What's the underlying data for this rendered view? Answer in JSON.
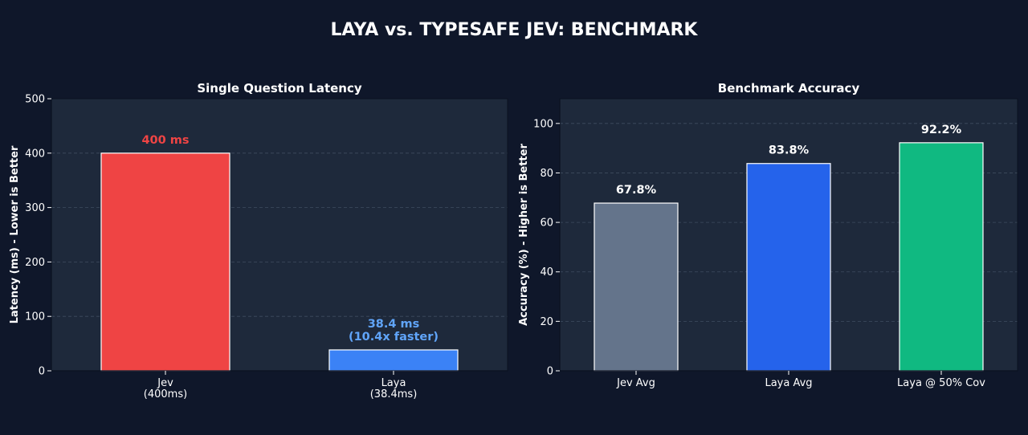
{
  "figure": {
    "title": "LAYA vs. TYPESAFE JEV: BENCHMARK"
  },
  "colors": {
    "figure_bg": "#0f172a",
    "plot_bg": "#1e293b",
    "text": "#ffffff",
    "grid": "#475569",
    "jev_red": "#ef4444",
    "laya_blue": "#3b82f6",
    "jev_gray": "#64748b",
    "laya_royal": "#2563eb",
    "laya_green": "#10b981",
    "label_red": "#ef4444",
    "label_blue": "#60a5fa"
  },
  "chart_data": [
    {
      "type": "bar",
      "title": "Single Question Latency",
      "ylabel": "Latency (ms) - Lower is Better",
      "xlabel": "",
      "categories": [
        "Jev\n(400ms)",
        "Laya\n(38.4ms)"
      ],
      "values": [
        400,
        38.4
      ],
      "bar_colors": [
        "#ef4444",
        "#3b82f6"
      ],
      "data_labels": [
        "400 ms",
        "38.4 ms\n(10.4x faster)"
      ],
      "data_label_colors": [
        "#ef4444",
        "#60a5fa"
      ],
      "ylim": [
        0,
        500
      ],
      "yticks": [
        0,
        100,
        200,
        300,
        400,
        500
      ],
      "grid": true
    },
    {
      "type": "bar",
      "title": "Benchmark Accuracy",
      "ylabel": "Accuracy (%) - Higher is Better",
      "xlabel": "",
      "categories": [
        "Jev Avg",
        "Laya Avg",
        "Laya @ 50% Cov"
      ],
      "values": [
        67.8,
        83.8,
        92.2
      ],
      "bar_colors": [
        "#64748b",
        "#2563eb",
        "#10b981"
      ],
      "data_labels": [
        "67.8%",
        "83.8%",
        "92.2%"
      ],
      "data_label_colors": [
        "#ffffff",
        "#ffffff",
        "#ffffff"
      ],
      "ylim": [
        0,
        110
      ],
      "yticks": [
        0,
        20,
        40,
        60,
        80,
        100
      ],
      "grid": true
    }
  ]
}
